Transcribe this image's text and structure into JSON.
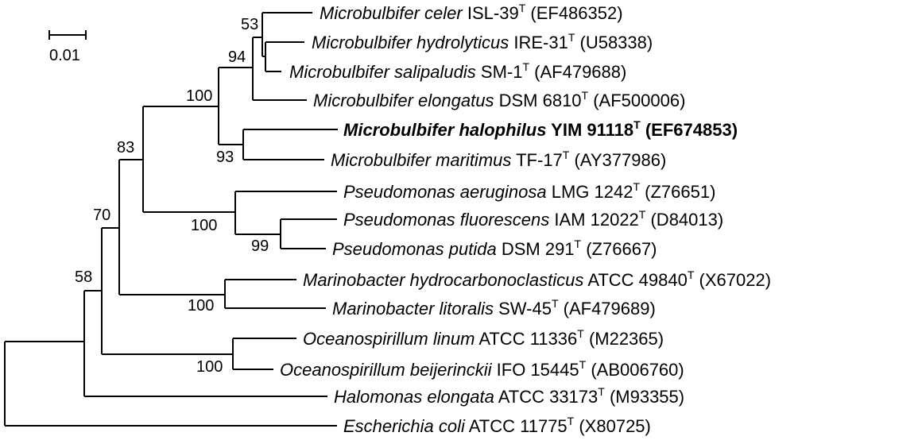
{
  "scale_bar": {
    "label": "0.01"
  },
  "taxa": [
    {
      "genus_species": "Microbulbifer celer",
      "strain": "ISL-39",
      "type_mark": "T",
      "accession": "(EF486352)",
      "bold": false
    },
    {
      "genus_species": "Microbulbifer hydrolyticus",
      "strain": "IRE-31",
      "type_mark": "T",
      "accession": "(U58338)",
      "bold": false
    },
    {
      "genus_species": "Microbulbifer salipaludis",
      "strain": "SM-1",
      "type_mark": "T",
      "accession": "(AF479688)",
      "bold": false
    },
    {
      "genus_species": "Microbulbifer elongatus",
      "strain": "DSM 6810",
      "type_mark": "T",
      "accession": "(AF500006)",
      "bold": false
    },
    {
      "genus_species": "Microbulbifer halophilus",
      "strain": "YIM 91118",
      "type_mark": "T",
      "accession": "(EF674853)",
      "bold": true
    },
    {
      "genus_species": "Microbulbifer maritimus",
      "strain": "TF-17",
      "type_mark": "T",
      "accession": "(AY377986)",
      "bold": false
    },
    {
      "genus_species": "Pseudomonas aeruginosa",
      "strain": "LMG 1242",
      "type_mark": "T",
      "accession": "(Z76651)",
      "bold": false
    },
    {
      "genus_species": "Pseudomonas fluorescens",
      "strain": "IAM 12022",
      "type_mark": "T",
      "accession": "(D84013)",
      "bold": false
    },
    {
      "genus_species": "Pseudomonas putida",
      "strain": "DSM 291",
      "type_mark": "T",
      "accession": "(Z76667)",
      "bold": false
    },
    {
      "genus_species": "Marinobacter hydrocarbonoclasticus",
      "strain": "ATCC 49840",
      "type_mark": "T",
      "accession": "(X67022)",
      "bold": false
    },
    {
      "genus_species": "Marinobacter litoralis",
      "strain": "SW-45",
      "type_mark": "T",
      "accession": "(AF479689)",
      "bold": false
    },
    {
      "genus_species": "Oceanospirillum linum",
      "strain": "ATCC 11336",
      "type_mark": "T",
      "accession": "(M22365)",
      "bold": false
    },
    {
      "genus_species": "Oceanospirillum beijerinckii",
      "strain": "IFO 15445",
      "type_mark": "T",
      "accession": "(AB006760)",
      "bold": false
    },
    {
      "genus_species": "Halomonas elongata",
      "strain": "ATCC 33173",
      "type_mark": "T",
      "accession": "(M93355)",
      "bold": false
    },
    {
      "genus_species": "Escherichia coli",
      "strain": "ATCC 11775",
      "type_mark": "T",
      "accession": "(X80725)",
      "bold": false
    }
  ],
  "bootstrap": [
    "53",
    "94",
    "100",
    "93",
    "83",
    "100",
    "99",
    "70",
    "100",
    "58",
    "100"
  ]
}
